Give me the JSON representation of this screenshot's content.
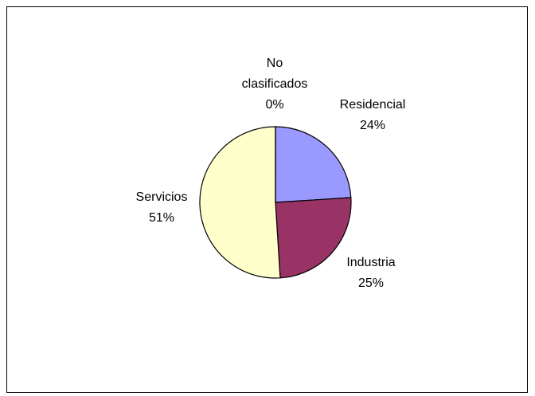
{
  "chart_data": {
    "type": "pie",
    "title": "",
    "start_angle_deg": 0,
    "direction": "clockwise",
    "slices": [
      {
        "name": "Residencial",
        "value": 24,
        "pct_label": "24%",
        "color": "#9999ff"
      },
      {
        "name": "Industria",
        "value": 25,
        "pct_label": "25%",
        "color": "#993366"
      },
      {
        "name": "Servicios",
        "value": 51,
        "pct_label": "51%",
        "color": "#ffffcc"
      },
      {
        "name": "No clasificados",
        "name_lines": [
          "No",
          "clasificados"
        ],
        "value": 0,
        "pct_label": "0%",
        "color": "#ffffff"
      }
    ],
    "slice_border_color": "#000000",
    "legend": "none"
  }
}
